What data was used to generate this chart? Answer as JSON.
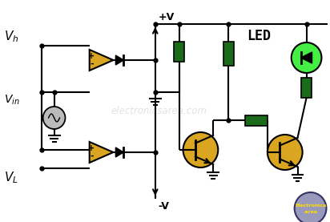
{
  "bg_color": "#ffffff",
  "wire_color": "#000000",
  "opamp_color": "#DAA520",
  "resistor_color": "#1a6b1a",
  "transistor_color": "#DAA520",
  "led_color": "#44ee44",
  "watermark_text": "electronicsarea.com",
  "label_plusV": "+V",
  "label_minusV": "-V",
  "label_LED": "LED",
  "logo_bg": "#8888bb",
  "logo_text1": "Electronica",
  "logo_text2": ".area"
}
